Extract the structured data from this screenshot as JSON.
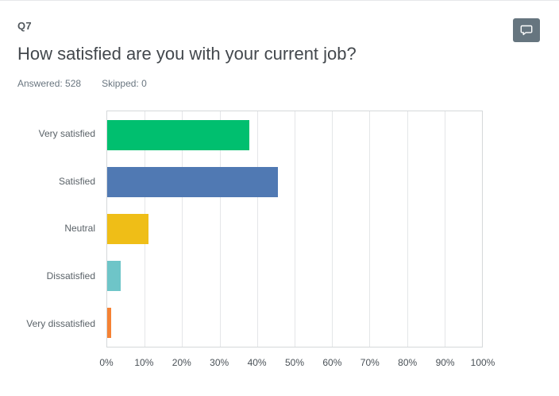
{
  "header": {
    "question_number": "Q7",
    "title": "How satisfied are you with your current job?",
    "answered": "Answered: 528",
    "skipped": "Skipped: 0"
  },
  "toolbar": {
    "comment_icon": "speech-bubble-icon",
    "comment_button_color": "#66757f"
  },
  "chart_data": {
    "type": "bar",
    "orientation": "horizontal",
    "title": "",
    "categories": [
      "Very satisfied",
      "Satisfied",
      "Neutral",
      "Dissatisfied",
      "Very dissatisfied"
    ],
    "values": [
      38,
      45.5,
      11,
      3.5,
      1
    ],
    "bar_colors": [
      "#00BF6F",
      "#5079B3",
      "#EFBE17",
      "#6EC5C8",
      "#F58234"
    ],
    "x_tick_labels": [
      "0%",
      "10%",
      "20%",
      "30%",
      "40%",
      "50%",
      "60%",
      "70%",
      "80%",
      "90%",
      "100%"
    ],
    "xlim": [
      0,
      100
    ],
    "grid": true,
    "legend": false
  }
}
